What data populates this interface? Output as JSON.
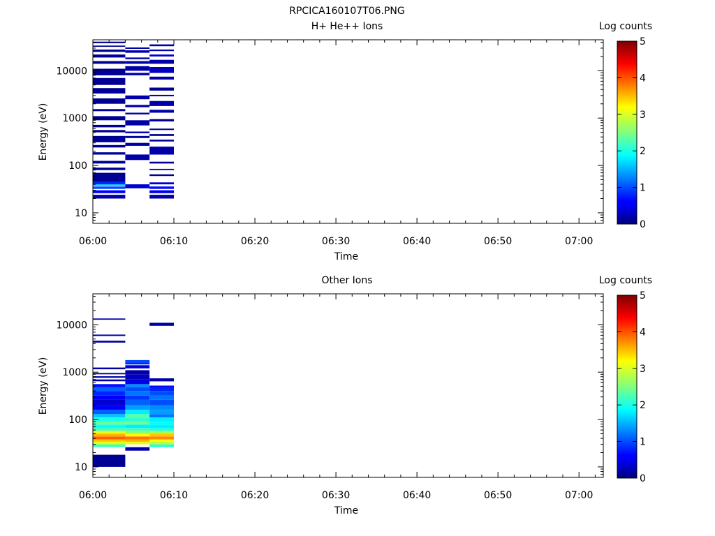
{
  "title": "RPCICA160107T06.PNG",
  "chart_data": [
    {
      "type": "heatmap",
      "title": "H+ He++ Ions",
      "xlabel": "Time",
      "ylabel": "Energy (eV)",
      "x_ticks": [
        "06:00",
        "06:10",
        "06:20",
        "06:30",
        "06:40",
        "06:50",
        "07:00"
      ],
      "x_range": [
        "06:00",
        "07:03"
      ],
      "y_scale": "log",
      "y_ticks": [
        10,
        100,
        1000,
        10000
      ],
      "y_range": [
        6,
        45000
      ],
      "colorbar": {
        "label": "Log counts",
        "range": [
          0,
          5
        ],
        "ticks": [
          0,
          1,
          2,
          3,
          4,
          5
        ]
      },
      "columns": [
        {
          "start": "06:00",
          "end": "06:04",
          "bins": [
            [
              20,
              24,
              0.2
            ],
            [
              26,
              30,
              0.6
            ],
            [
              32,
              36,
              1.0
            ],
            [
              37,
              40,
              1.6
            ],
            [
              40,
              45,
              0.8
            ],
            [
              45,
              70,
              0.1
            ],
            [
              80,
              90,
              0.1
            ],
            [
              110,
              125,
              0.1
            ],
            [
              170,
              190,
              0.1
            ],
            [
              240,
              270,
              0.1
            ],
            [
              310,
              420,
              0.1
            ],
            [
              500,
              560,
              0.1
            ],
            [
              640,
              720,
              0.1
            ],
            [
              900,
              1100,
              0.1
            ],
            [
              1400,
              1550,
              0.1
            ],
            [
              2000,
              2600,
              0.1
            ],
            [
              3300,
              4300,
              0.1
            ],
            [
              5000,
              7000,
              0.1
            ],
            [
              8000,
              11000,
              0.1
            ],
            [
              14000,
              16000,
              0.1
            ],
            [
              19000,
              22000,
              0.1
            ],
            [
              25000,
              28000,
              0.1
            ],
            [
              32000,
              34000,
              0.1
            ],
            [
              38000,
              41000,
              0.1
            ]
          ]
        },
        {
          "start": "06:04",
          "end": "06:07",
          "bins": [
            [
              33,
              40,
              0.4
            ],
            [
              130,
              170,
              0.2
            ],
            [
              260,
              300,
              0.2
            ],
            [
              380,
              420,
              0.2
            ],
            [
              480,
              520,
              0.2
            ],
            [
              700,
              900,
              0.2
            ],
            [
              1200,
              1300,
              0.2
            ],
            [
              1700,
              1900,
              0.2
            ],
            [
              2500,
              3000,
              0.2
            ],
            [
              8000,
              9000,
              0.2
            ],
            [
              10000,
              12500,
              0.2
            ],
            [
              14000,
              16000,
              0.2
            ],
            [
              17500,
              19000,
              0.2
            ],
            [
              24000,
              27000,
              0.2
            ],
            [
              29000,
              31000,
              0.2
            ]
          ]
        },
        {
          "start": "06:07",
          "end": "06:10",
          "bins": [
            [
              20,
              24,
              0.2
            ],
            [
              26,
              30,
              0.5
            ],
            [
              32,
              36,
              0.7
            ],
            [
              40,
              44,
              0.4
            ],
            [
              60,
              65,
              0.1
            ],
            [
              80,
              85,
              0.1
            ],
            [
              110,
              120,
              0.1
            ],
            [
              170,
              250,
              0.2
            ],
            [
              320,
              350,
              0.1
            ],
            [
              420,
              460,
              0.1
            ],
            [
              560,
              600,
              0.1
            ],
            [
              850,
              950,
              0.1
            ],
            [
              1300,
              1500,
              0.2
            ],
            [
              1800,
              2300,
              0.2
            ],
            [
              2900,
              3100,
              0.1
            ],
            [
              3800,
              4400,
              0.1
            ],
            [
              6500,
              7500,
              0.2
            ],
            [
              9000,
              12000,
              0.3
            ],
            [
              14000,
              17000,
              0.2
            ],
            [
              20000,
              22000,
              0.4
            ],
            [
              26000,
              28000,
              0.2
            ],
            [
              33000,
              36000,
              0.2
            ]
          ]
        }
      ]
    },
    {
      "type": "heatmap",
      "title": "Other Ions",
      "xlabel": "Time",
      "ylabel": "Energy (eV)",
      "x_ticks": [
        "06:00",
        "06:10",
        "06:20",
        "06:30",
        "06:40",
        "06:50",
        "07:00"
      ],
      "x_range": [
        "06:00",
        "07:03"
      ],
      "y_scale": "log",
      "y_ticks": [
        10,
        100,
        1000,
        10000
      ],
      "y_range": [
        6,
        45000
      ],
      "colorbar": {
        "label": "Log counts",
        "range": [
          0,
          5
        ],
        "ticks": [
          0,
          1,
          2,
          3,
          4,
          5
        ]
      },
      "columns": [
        {
          "start": "06:00",
          "end": "06:04",
          "bins": [
            [
              10,
              18,
              0.1
            ],
            [
              26,
              30,
              2.2
            ],
            [
              30,
              34,
              3.0
            ],
            [
              34,
              38,
              3.4
            ],
            [
              38,
              44,
              3.9
            ],
            [
              44,
              50,
              3.5
            ],
            [
              50,
              58,
              3.0
            ],
            [
              58,
              66,
              2.2
            ],
            [
              66,
              78,
              1.9
            ],
            [
              78,
              90,
              2.4
            ],
            [
              90,
              110,
              2.0
            ],
            [
              110,
              130,
              1.6
            ],
            [
              130,
              160,
              1.1
            ],
            [
              160,
              200,
              0.6
            ],
            [
              200,
              260,
              0.4
            ],
            [
              260,
              320,
              0.6
            ],
            [
              320,
              400,
              0.8
            ],
            [
              400,
              480,
              1.1
            ],
            [
              480,
              560,
              0.7
            ],
            [
              640,
              700,
              0.2
            ],
            [
              760,
              820,
              0.2
            ],
            [
              900,
              960,
              0.2
            ],
            [
              1150,
              1250,
              0.2
            ],
            [
              4200,
              4600,
              0.2
            ],
            [
              5800,
              6200,
              0.2
            ],
            [
              12800,
              13600,
              0.2
            ]
          ]
        },
        {
          "start": "06:04",
          "end": "06:07",
          "bins": [
            [
              22,
              26,
              0.2
            ],
            [
              30,
              34,
              3.0
            ],
            [
              34,
              38,
              3.5
            ],
            [
              38,
              44,
              3.8
            ],
            [
              44,
              50,
              3.1
            ],
            [
              50,
              58,
              2.6
            ],
            [
              58,
              66,
              2.2
            ],
            [
              66,
              78,
              1.8
            ],
            [
              78,
              90,
              2.4
            ],
            [
              90,
              110,
              2.1
            ],
            [
              110,
              130,
              2.3
            ],
            [
              130,
              160,
              1.8
            ],
            [
              160,
              200,
              1.4
            ],
            [
              200,
              260,
              1.1
            ],
            [
              260,
              320,
              0.9
            ],
            [
              320,
              400,
              1.2
            ],
            [
              400,
              480,
              1.0
            ],
            [
              480,
              560,
              1.3
            ],
            [
              560,
              700,
              0.5
            ],
            [
              700,
              900,
              0.3
            ],
            [
              900,
              1100,
              0.2
            ],
            [
              1200,
              1400,
              0.4
            ],
            [
              1450,
              1600,
              0.8
            ],
            [
              1600,
              1800,
              1.0
            ]
          ]
        },
        {
          "start": "06:07",
          "end": "06:10",
          "bins": [
            [
              26,
              30,
              2.1
            ],
            [
              30,
              34,
              2.8
            ],
            [
              34,
              38,
              3.1
            ],
            [
              38,
              44,
              3.7
            ],
            [
              44,
              50,
              3.4
            ],
            [
              50,
              58,
              2.7
            ],
            [
              58,
              66,
              2.0
            ],
            [
              66,
              78,
              1.8
            ],
            [
              78,
              90,
              1.9
            ],
            [
              90,
              110,
              1.8
            ],
            [
              110,
              130,
              1.2
            ],
            [
              130,
              160,
              1.4
            ],
            [
              160,
              200,
              1.3
            ],
            [
              200,
              260,
              1.0
            ],
            [
              260,
              320,
              1.2
            ],
            [
              320,
              400,
              1.0
            ],
            [
              400,
              480,
              0.8
            ],
            [
              480,
              520,
              0.6
            ],
            [
              640,
              740,
              0.2
            ],
            [
              9500,
              11000,
              0.2
            ]
          ]
        }
      ]
    }
  ]
}
